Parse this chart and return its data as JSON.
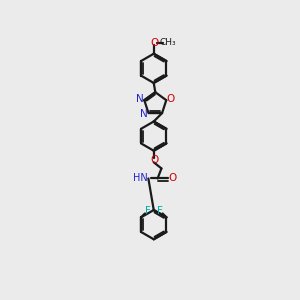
{
  "background_color": "#ebebeb",
  "bond_color": "#1a1a1a",
  "lw": 1.6,
  "N_color": "#2222cc",
  "O_color": "#cc0000",
  "F_color": "#00aaaa",
  "figsize": [
    3.0,
    3.0
  ],
  "dpi": 100,
  "xlim": [
    0,
    300
  ],
  "ylim": [
    0,
    300
  ]
}
